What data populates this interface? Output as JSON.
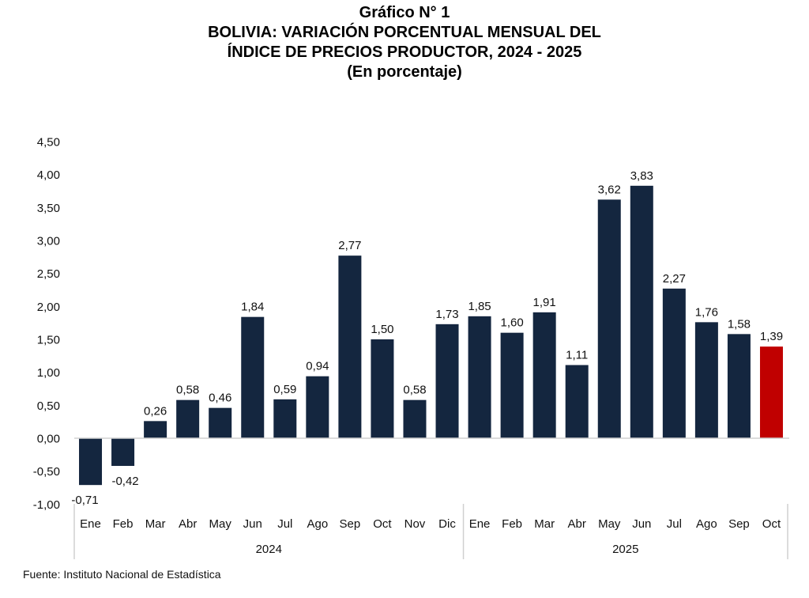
{
  "chart_data": {
    "type": "bar",
    "title_lines": [
      "Gráfico N° 1",
      "BOLIVIA: VARIACIÓN PORCENTUAL MENSUAL DEL",
      "ÍNDICE DE PRECIOS PRODUCTOR, 2024 - 2025",
      "(En porcentaje)"
    ],
    "xlabel": "",
    "ylabel": "",
    "ylim": [
      -1.0,
      4.5
    ],
    "yticks": [
      -1.0,
      -0.5,
      0.0,
      0.5,
      1.0,
      1.5,
      2.0,
      2.5,
      3.0,
      3.5,
      4.0,
      4.5
    ],
    "ytick_labels": [
      "-1,00",
      "-0,50",
      "0,00",
      "0,50",
      "1,00",
      "1,50",
      "2,00",
      "2,50",
      "3,00",
      "3,50",
      "4,00",
      "4,50"
    ],
    "grid": false,
    "groups": [
      {
        "label": "2024",
        "categories": [
          "Ene",
          "Feb",
          "Mar",
          "Abr",
          "May",
          "Jun",
          "Jul",
          "Ago",
          "Sep",
          "Oct",
          "Nov",
          "Dic"
        ]
      },
      {
        "label": "2025",
        "categories": [
          "Ene",
          "Feb",
          "Mar",
          "Abr",
          "May",
          "Jun",
          "Jul",
          "Ago",
          "Sep",
          "Oct"
        ]
      }
    ],
    "values": [
      -0.71,
      -0.42,
      0.26,
      0.58,
      0.46,
      1.84,
      0.59,
      0.94,
      2.77,
      1.5,
      0.58,
      1.73,
      1.85,
      1.6,
      1.91,
      1.11,
      3.62,
      3.83,
      2.27,
      1.76,
      1.58,
      1.39
    ],
    "data_labels": [
      "-0,71",
      "-0,42",
      "0,26",
      "0,58",
      "0,46",
      "1,84",
      "0,59",
      "0,94",
      "2,77",
      "1,50",
      "0,58",
      "1,73",
      "1,85",
      "1,60",
      "1,91",
      "1,11",
      "3,62",
      "3,83",
      "2,27",
      "1,76",
      "1,58",
      "1,39"
    ],
    "highlight_index": 21,
    "colors": {
      "bar": "#14263f",
      "highlight": "#c00000",
      "axis": "#d0d0d0",
      "text": "#111111"
    }
  },
  "source": "Fuente: Instituto Nacional de Estadística"
}
